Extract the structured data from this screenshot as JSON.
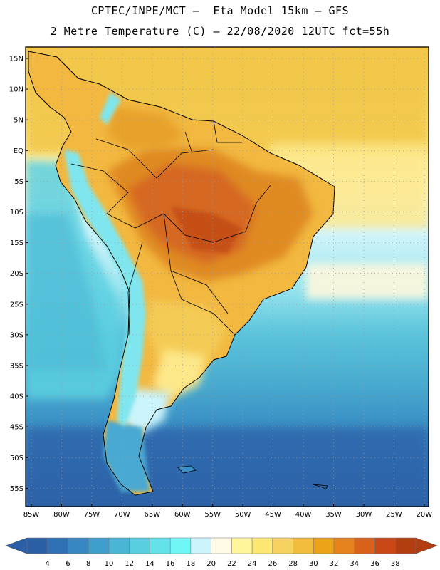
{
  "header": {
    "line1": "CPTEC/INPE/MCT –  Eta Model 15km – GFS",
    "line2": "2 Metre Temperature (C) – 22/08/2020 12UTC fct=55h"
  },
  "map": {
    "lat_labels": [
      "15N",
      "10N",
      "5N",
      "EQ",
      "5S",
      "10S",
      "15S",
      "20S",
      "25S",
      "30S",
      "35S",
      "40S",
      "45S",
      "50S",
      "55S"
    ],
    "lon_labels": [
      "85W",
      "80W",
      "75W",
      "70W",
      "65W",
      "60W",
      "55W",
      "50W",
      "45W",
      "40W",
      "35W",
      "30W",
      "25W",
      "20W"
    ]
  },
  "legend": {
    "values": [
      "4",
      "6",
      "8",
      "10",
      "12",
      "14",
      "16",
      "18",
      "20",
      "22",
      "24",
      "26",
      "28",
      "30",
      "32",
      "34",
      "36",
      "38"
    ],
    "colors": [
      "#2b5ea5",
      "#2f6fb3",
      "#3687c2",
      "#3e9fcc",
      "#4ab6d6",
      "#58cfe0",
      "#62e3ea",
      "#6ff7f5",
      "#cbf4fc",
      "#fffbe6",
      "#fff59a",
      "#fde872",
      "#f6d261",
      "#f2bd3c",
      "#eda319",
      "#e5821c",
      "#d9621a",
      "#c84714",
      "#b23d10"
    ]
  }
}
